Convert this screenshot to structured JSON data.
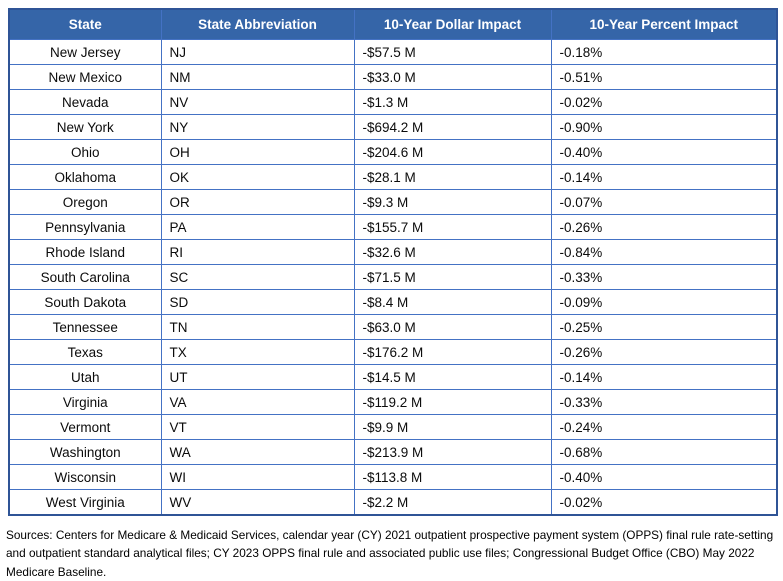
{
  "colors": {
    "header_bg": "#3565A8",
    "inner_border": "#4472C4",
    "outer_border": "#2F5496"
  },
  "table": {
    "headers": [
      "State",
      "State Abbreviation",
      "10-Year Dollar Impact",
      "10-Year Percent Impact"
    ],
    "rows": [
      {
        "state": "New Jersey",
        "abbr": "NJ",
        "dollar": "-$57.5 M",
        "percent": "-0.18%"
      },
      {
        "state": "New Mexico",
        "abbr": "NM",
        "dollar": "-$33.0 M",
        "percent": "-0.51%"
      },
      {
        "state": "Nevada",
        "abbr": "NV",
        "dollar": "-$1.3 M",
        "percent": "-0.02%"
      },
      {
        "state": "New York",
        "abbr": "NY",
        "dollar": "-$694.2 M",
        "percent": "-0.90%"
      },
      {
        "state": "Ohio",
        "abbr": "OH",
        "dollar": "-$204.6 M",
        "percent": "-0.40%"
      },
      {
        "state": "Oklahoma",
        "abbr": "OK",
        "dollar": "-$28.1 M",
        "percent": "-0.14%"
      },
      {
        "state": "Oregon",
        "abbr": "OR",
        "dollar": "-$9.3 M",
        "percent": "-0.07%"
      },
      {
        "state": "Pennsylvania",
        "abbr": "PA",
        "dollar": "-$155.7 M",
        "percent": "-0.26%"
      },
      {
        "state": "Rhode Island",
        "abbr": "RI",
        "dollar": "-$32.6 M",
        "percent": "-0.84%"
      },
      {
        "state": "South Carolina",
        "abbr": "SC",
        "dollar": "-$71.5 M",
        "percent": "-0.33%"
      },
      {
        "state": "South Dakota",
        "abbr": "SD",
        "dollar": "-$8.4 M",
        "percent": "-0.09%"
      },
      {
        "state": "Tennessee",
        "abbr": "TN",
        "dollar": "-$63.0 M",
        "percent": "-0.25%"
      },
      {
        "state": "Texas",
        "abbr": "TX",
        "dollar": "-$176.2 M",
        "percent": "-0.26%"
      },
      {
        "state": "Utah",
        "abbr": "UT",
        "dollar": "-$14.5 M",
        "percent": "-0.14%"
      },
      {
        "state": "Virginia",
        "abbr": "VA",
        "dollar": "-$119.2 M",
        "percent": "-0.33%"
      },
      {
        "state": "Vermont",
        "abbr": "VT",
        "dollar": "-$9.9 M",
        "percent": "-0.24%"
      },
      {
        "state": "Washington",
        "abbr": "WA",
        "dollar": "-$213.9 M",
        "percent": "-0.68%"
      },
      {
        "state": "Wisconsin",
        "abbr": "WI",
        "dollar": "-$113.8 M",
        "percent": "-0.40%"
      },
      {
        "state": "West Virginia",
        "abbr": "WV",
        "dollar": "-$2.2 M",
        "percent": "-0.02%"
      }
    ]
  },
  "footer": {
    "sources": "Sources: Centers for Medicare & Medicaid Services, calendar year (CY) 2021 outpatient prospective payment system (OPPS) final rule rate-setting and outpatient standard analytical files; CY 2023 OPPS final rule and associated public use files; Congressional Budget Office (CBO) May 2022 Medicare Baseline."
  }
}
